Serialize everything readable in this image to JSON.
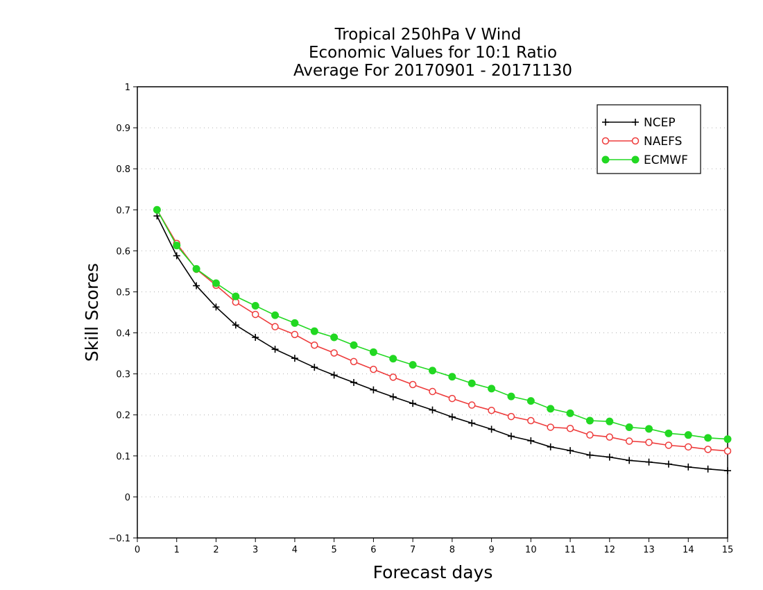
{
  "chart_data": {
    "type": "line",
    "title": [
      "Tropical 250hPa V Wind",
      "Economic Values for 10:1 Ratio",
      "Average For 20170901 - 20171130"
    ],
    "xlabel": "Forecast days",
    "ylabel": "Skill Scores",
    "xlim": [
      0,
      15
    ],
    "ylim": [
      -0.1,
      1
    ],
    "xticks": [
      0,
      1,
      2,
      3,
      4,
      5,
      6,
      7,
      8,
      9,
      10,
      11,
      12,
      13,
      14,
      15
    ],
    "yticks": [
      -0.1,
      0,
      0.1,
      0.2,
      0.3,
      0.4,
      0.5,
      0.6,
      0.7,
      0.8,
      0.9,
      1
    ],
    "ytick_labels": [
      "−0.1",
      "0",
      "0.1",
      "0.2",
      "0.3",
      "0.4",
      "0.5",
      "0.6",
      "0.7",
      "0.8",
      "0.9",
      "1"
    ],
    "grid": "horizontal dotted",
    "legend_position": "top-right",
    "x": [
      0.5,
      1,
      1.5,
      2,
      2.5,
      3,
      3.5,
      4,
      4.5,
      5,
      5.5,
      6,
      6.5,
      7,
      7.5,
      8,
      8.5,
      9,
      9.5,
      10,
      10.5,
      11,
      11.5,
      12,
      12.5,
      13,
      13.5,
      14,
      14.5,
      15
    ],
    "series": [
      {
        "name": "NCEP",
        "color": "#000000",
        "marker": "plus",
        "values": [
          0.685,
          0.588,
          0.515,
          0.463,
          0.419,
          0.389,
          0.36,
          0.338,
          0.316,
          0.297,
          0.279,
          0.261,
          0.244,
          0.228,
          0.212,
          0.195,
          0.18,
          0.165,
          0.148,
          0.137,
          0.122,
          0.113,
          0.102,
          0.097,
          0.089,
          0.085,
          0.08,
          0.073,
          0.068,
          0.064
        ]
      },
      {
        "name": "NAEFS",
        "color": "#ee3b3b",
        "marker": "open-circle",
        "values": [
          0.7,
          0.618,
          0.555,
          0.516,
          0.475,
          0.445,
          0.415,
          0.396,
          0.37,
          0.351,
          0.33,
          0.311,
          0.292,
          0.274,
          0.257,
          0.24,
          0.224,
          0.211,
          0.196,
          0.186,
          0.17,
          0.167,
          0.151,
          0.146,
          0.136,
          0.133,
          0.126,
          0.122,
          0.116,
          0.112
        ]
      },
      {
        "name": "ECMWF",
        "color": "#22d822",
        "marker": "filled-circle",
        "values": [
          0.7,
          0.613,
          0.556,
          0.521,
          0.489,
          0.466,
          0.443,
          0.424,
          0.404,
          0.389,
          0.37,
          0.353,
          0.337,
          0.322,
          0.308,
          0.293,
          0.277,
          0.264,
          0.245,
          0.234,
          0.215,
          0.204,
          0.186,
          0.184,
          0.17,
          0.166,
          0.155,
          0.151,
          0.144,
          0.141
        ]
      }
    ]
  }
}
